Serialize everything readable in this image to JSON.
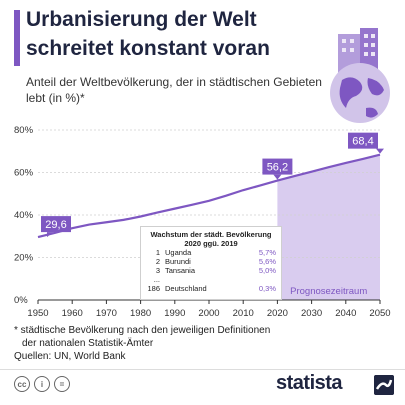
{
  "title": "Urbanisierung der Welt schreitet konstant voran",
  "subtitle": "Anteil der Weltbevölkerung, der in städtischen Gebieten lebt (in %)*",
  "inset": {
    "title": "Wachstum der städt. Bevölkerung 2020 ggü. 2019",
    "rows": [
      {
        "rank": "1",
        "name": "Uganda",
        "value": "5,7%"
      },
      {
        "rank": "2",
        "name": "Burundi",
        "value": "5,6%"
      },
      {
        "rank": "3",
        "name": "Tansania",
        "value": "5,0%"
      },
      {
        "rank": "...",
        "name": "",
        "value": ""
      },
      {
        "rank": "186",
        "name": "Deutschland",
        "value": "0,3%"
      }
    ]
  },
  "forecast_label": "Prognosezeitraum",
  "footnote_1": "* städtische Bevölkerung nach den jeweiligen Definitionen",
  "footnote_2": "der nationalen Statistik-Ämter",
  "sources": "Quellen: UN, World Bank",
  "brand": "statista",
  "colors": {
    "accent": "#7e57c2",
    "forecast": "#d9ccef",
    "line": "#7e57c2"
  },
  "chart_data": {
    "type": "line",
    "x": [
      1950,
      1955,
      1960,
      1965,
      1970,
      1975,
      1980,
      1985,
      1990,
      1995,
      2000,
      2005,
      2010,
      2015,
      2020,
      2025,
      2030,
      2035,
      2040,
      2045,
      2050
    ],
    "values": [
      29.6,
      31.6,
      33.8,
      35.5,
      36.6,
      37.7,
      39.3,
      41.2,
      43.0,
      44.8,
      46.7,
      49.1,
      51.7,
      53.9,
      56.2,
      58.3,
      60.4,
      62.5,
      64.5,
      66.4,
      68.4
    ],
    "labeled_points": [
      {
        "x": 1950,
        "y": 29.6,
        "label": "29,6"
      },
      {
        "x": 2020,
        "y": 56.2,
        "label": "56,2"
      },
      {
        "x": 2050,
        "y": 68.4,
        "label": "68,4"
      }
    ],
    "xticks": [
      "1950",
      "1960",
      "1970",
      "1980",
      "1990",
      "2000",
      "2010",
      "2020",
      "2030",
      "2040",
      "2050"
    ],
    "yticks": [
      "0%",
      "20%",
      "40%",
      "60%",
      "80%"
    ],
    "ylim": [
      0,
      80
    ],
    "xlim": [
      1950,
      2050
    ],
    "forecast_range": [
      2020,
      2050
    ]
  }
}
